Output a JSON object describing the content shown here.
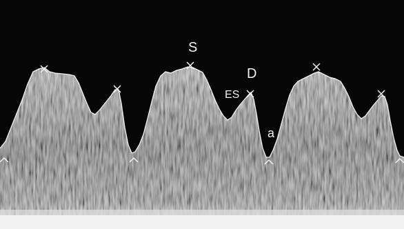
{
  "image": {
    "kind": "spectral doppler waveform",
    "colors": {
      "background": "#060606",
      "spectrum_light": "#d8d8d8",
      "spectrum_dark": "#3a3a3a",
      "envelope_trace": "#f4f4f4",
      "marker": "#f4f4f4"
    }
  },
  "labels": {
    "s": "S",
    "d": "D",
    "es": "ES",
    "a": "a"
  },
  "markers": {
    "peak_marker_icon": "x-marker-icon",
    "trough_marker_icon": "chevron-marker-icon"
  }
}
